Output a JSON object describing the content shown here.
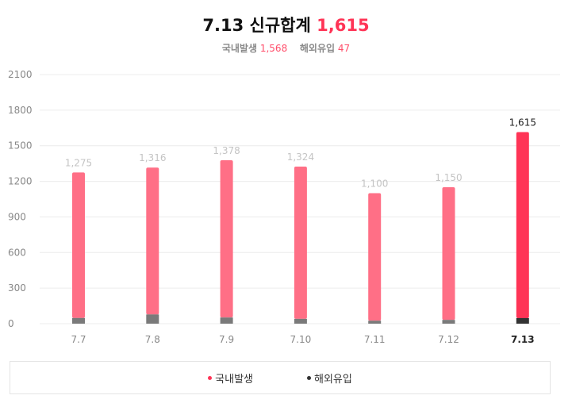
{
  "header": {
    "title_prefix": "7.13 신규합계",
    "title_total": "1,615",
    "domestic_label": "국내발생",
    "domestic_value": "1,568",
    "overseas_label": "해외유입",
    "overseas_value": "47"
  },
  "colors": {
    "domestic": "#ff6f86",
    "domestic_highlight": "#ff3456",
    "overseas": "#7a7a7a",
    "overseas_highlight": "#333333",
    "grid": "#ececec",
    "axis_text": "#888888",
    "label_text": "#c4c4c4",
    "highlight_text": "#222222"
  },
  "chart_data": {
    "type": "bar",
    "stacked": true,
    "categories": [
      "7.7",
      "7.8",
      "7.9",
      "7.10",
      "7.11",
      "7.12",
      "7.13"
    ],
    "highlight_index": 6,
    "series": [
      {
        "name": "국내발생",
        "values": [
          1227,
          1238,
          1326,
          1283,
          1075,
          1118,
          1568
        ]
      },
      {
        "name": "해외유입",
        "values": [
          48,
          78,
          52,
          41,
          25,
          32,
          47
        ]
      }
    ],
    "total_labels": [
      "1,275",
      "1,316",
      "1,378",
      "1,324",
      "1,100",
      "1,150",
      "1,615"
    ],
    "yticks": [
      0,
      300,
      600,
      900,
      1200,
      1500,
      1800,
      2100
    ],
    "ylim": [
      0,
      2100
    ],
    "grid": true,
    "legend_position": "bottom"
  },
  "legend": {
    "items": [
      {
        "label": "국내발생",
        "color": "#ff3456"
      },
      {
        "label": "해외유입",
        "color": "#333333"
      }
    ]
  }
}
